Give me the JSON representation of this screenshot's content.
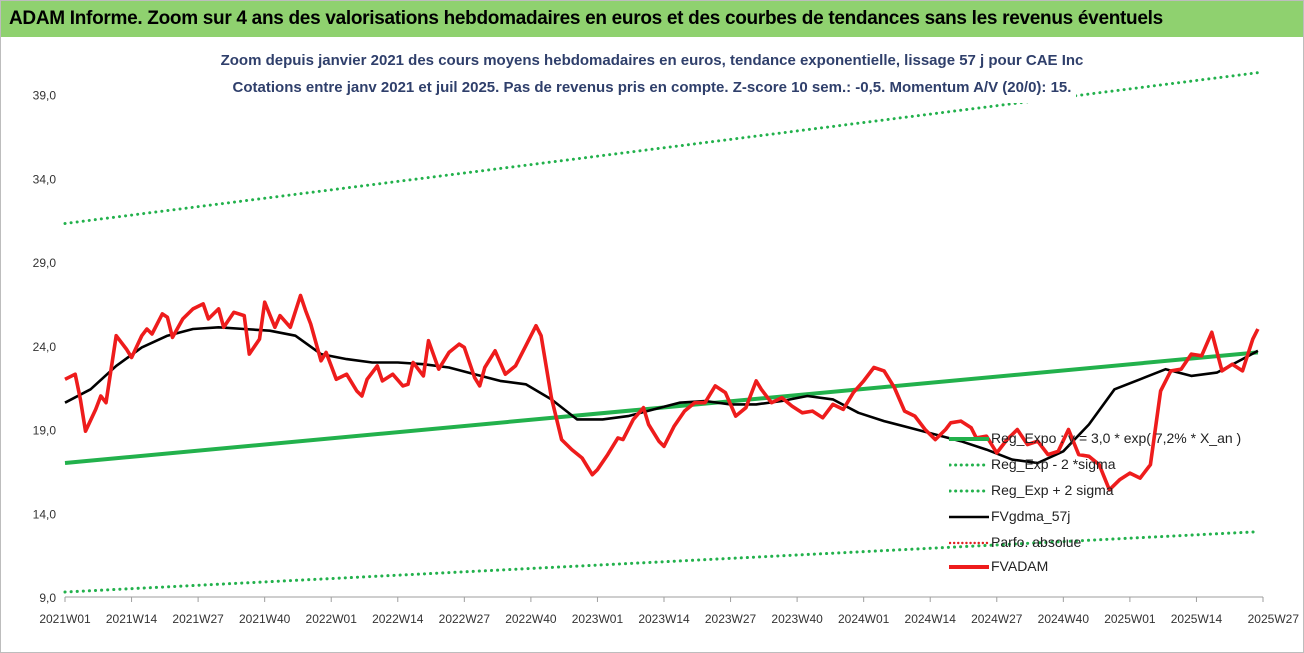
{
  "header": {
    "title": "ADAM Informe. Zoom sur 4 ans des valorisations hebdomadaires en euros et des courbes de tendances sans les revenus éventuels"
  },
  "subtitle": {
    "line1": "Zoom depuis janvier 2021 des cours moyens hebdomadaires en euros, tendance exponentielle, lissage 57 j pour CAE Inc",
    "line2": "Cotations entre janv 2021 et juil 2025. Pas de revenus pris en compte. Z-score 10 sem.: -0,5. Momentum A/V (20/0): 15."
  },
  "colors": {
    "header_bg": "#8fd16f",
    "subtitle_text": "#2f3f6b",
    "reg_expo": "#22b14c",
    "sigma_lines": "#22b14c",
    "gdma": "#000000",
    "perf_absolue": "#e02020",
    "fvadam": "#ee1c1c",
    "axis_text": "#333333"
  },
  "legend": [
    {
      "label": "Reg_Expo : y = 3,0 * exp( 7,2% *  X_an )",
      "color": "#22b14c",
      "style": "solid"
    },
    {
      "label": "Reg_Exp - 2 *sigma",
      "color": "#22b14c",
      "style": "dotted"
    },
    {
      "label": "Reg_Exp + 2 sigma",
      "color": "#22b14c",
      "style": "dotted"
    },
    {
      "label": "FVgdma_57j",
      "color": "#000000",
      "style": "solid"
    },
    {
      "label": "Parfo. absolue",
      "color": "#e02020",
      "style": "dotted"
    },
    {
      "label": "FVADAM",
      "color": "#ee1c1c",
      "style": "thick"
    }
  ],
  "chart_data": {
    "type": "line",
    "title": "",
    "xlabel": "",
    "ylabel": "",
    "x_unit": "weeks since 2021W01",
    "xlim": [
      0,
      233
    ],
    "ylim": [
      9,
      42
    ],
    "y_ticks": [
      9,
      14,
      19,
      24,
      29,
      34,
      39
    ],
    "y_tick_labels": [
      "9,0",
      "14,0",
      "19,0",
      "24,0",
      "29,0",
      "34,0",
      "39,0"
    ],
    "x_ticks": [
      0,
      13,
      26,
      39,
      52,
      65,
      78,
      91,
      104,
      117,
      130,
      143,
      156,
      169,
      182,
      195,
      208,
      221,
      234
    ],
    "x_tick_labels": [
      "2021W01",
      "2021W14",
      "2021W27",
      "2021W40",
      "2022W01",
      "2022W14",
      "2022W27",
      "2022W40",
      "2023W01",
      "2023W14",
      "2023W27",
      "2023W40",
      "2024W01",
      "2024W14",
      "2024W27",
      "2024W40",
      "2025W01",
      "2025W14",
      "2025W27"
    ],
    "grid": false,
    "legend_position": "bottom-right",
    "series": [
      {
        "name": "FVADAM",
        "x": [
          0,
          2,
          3,
          4,
          6,
          7,
          8,
          10,
          12,
          13,
          15,
          16,
          17,
          19,
          20,
          21,
          23,
          25,
          27,
          28,
          30,
          31,
          33,
          35,
          36,
          38,
          39,
          41,
          42,
          44,
          46,
          47,
          48,
          50,
          51,
          53,
          55,
          57,
          58,
          59,
          61,
          62,
          64,
          66,
          67,
          68,
          70,
          71,
          73,
          75,
          77,
          78,
          80,
          81,
          82,
          84,
          86,
          88,
          90,
          92,
          93,
          95,
          97,
          99,
          101,
          103,
          104,
          106,
          108,
          109,
          111,
          113,
          114,
          116,
          117,
          119,
          121,
          123,
          125,
          127,
          129,
          131,
          133,
          135,
          136,
          138,
          140,
          142,
          144,
          146,
          148,
          150,
          152,
          154,
          156,
          158,
          160,
          162,
          164,
          166,
          168,
          170,
          172,
          173,
          175,
          177,
          178,
          180,
          182,
          184,
          186,
          188,
          190,
          192,
          194,
          196,
          198,
          200,
          202,
          204,
          206,
          208,
          210,
          212,
          214,
          216,
          218,
          220,
          222,
          224,
          226,
          228,
          230,
          232,
          233
        ],
        "y": [
          22.0,
          22.3,
          20.8,
          18.9,
          20.2,
          21.0,
          20.6,
          24.6,
          23.8,
          23.3,
          24.6,
          25.0,
          24.7,
          25.9,
          25.7,
          24.5,
          25.6,
          26.2,
          26.5,
          25.6,
          26.2,
          25.1,
          26.0,
          25.8,
          23.5,
          24.4,
          26.6,
          25.1,
          25.8,
          25.1,
          27.0,
          26.1,
          25.3,
          23.1,
          23.6,
          22.0,
          22.3,
          21.3,
          21.0,
          22.0,
          22.8,
          21.9,
          22.3,
          21.6,
          21.7,
          23.0,
          22.2,
          24.3,
          22.6,
          23.6,
          24.1,
          23.9,
          22.1,
          21.6,
          22.7,
          23.7,
          22.3,
          22.8,
          24.0,
          25.2,
          24.6,
          20.9,
          18.4,
          17.8,
          17.3,
          16.3,
          16.6,
          17.5,
          18.5,
          18.4,
          19.6,
          20.3,
          19.3,
          18.3,
          18.0,
          19.2,
          20.1,
          20.6,
          20.6,
          21.6,
          21.2,
          19.8,
          20.3,
          21.9,
          21.4,
          20.6,
          20.9,
          20.4,
          20.0,
          20.1,
          19.7,
          20.5,
          20.2,
          21.2,
          21.9,
          22.7,
          22.5,
          21.5,
          20.1,
          19.8,
          19.0,
          18.4,
          19.0,
          19.4,
          19.5,
          19.1,
          18.5,
          18.6,
          17.6,
          18.4,
          19.0,
          18.1,
          18.3,
          17.5,
          17.7,
          19.0,
          17.5,
          17.4,
          16.9,
          15.4,
          16.0,
          16.4,
          16.1,
          16.9,
          21.3,
          22.5,
          22.6,
          23.5,
          23.4,
          24.8,
          22.5,
          22.9,
          22.5,
          24.4,
          25.0
        ]
      },
      {
        "name": "FVgdma_57j",
        "x": [
          0,
          5,
          10,
          15,
          20,
          25,
          30,
          35,
          40,
          45,
          50,
          55,
          60,
          65,
          70,
          75,
          80,
          85,
          90,
          95,
          100,
          105,
          110,
          115,
          120,
          125,
          130,
          135,
          140,
          145,
          150,
          155,
          160,
          165,
          170,
          175,
          180,
          185,
          190,
          195,
          200,
          205,
          210,
          215,
          220,
          225,
          230,
          233
        ],
        "y": [
          20.6,
          21.4,
          22.8,
          23.9,
          24.6,
          25.0,
          25.1,
          25.0,
          24.9,
          24.6,
          23.5,
          23.2,
          23.0,
          23.0,
          22.9,
          22.7,
          22.3,
          21.9,
          21.7,
          20.8,
          19.6,
          19.6,
          19.8,
          20.2,
          20.6,
          20.7,
          20.5,
          20.5,
          20.7,
          21.0,
          20.8,
          20.0,
          19.5,
          19.1,
          18.7,
          18.3,
          17.8,
          17.2,
          17.0,
          17.7,
          19.3,
          21.4,
          22.0,
          22.6,
          22.2,
          22.4,
          23.2,
          23.7
        ]
      },
      {
        "name": "Reg_Expo : y = 3,0 * exp( 7,2% *  X_an )",
        "x": [
          0,
          233
        ],
        "y": [
          17.0,
          23.6
        ]
      },
      {
        "name": "Reg_Exp - 2 *sigma",
        "x": [
          0,
          233
        ],
        "y": [
          9.3,
          12.9
        ]
      },
      {
        "name": "Reg_Exp + 2 sigma",
        "x": [
          0,
          233
        ],
        "y": [
          31.3,
          40.3
        ]
      }
    ]
  }
}
